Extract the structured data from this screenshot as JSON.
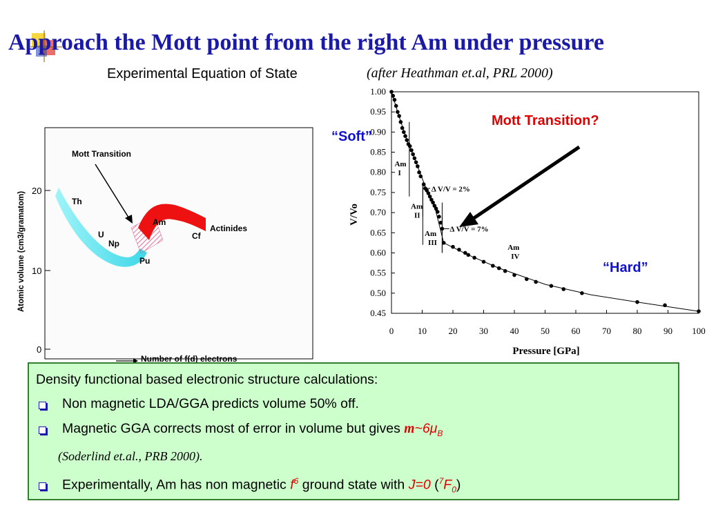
{
  "title": {
    "main": "Approach the Mott point from the right Am under pressure",
    "subtitle": "Experimental Equation of State",
    "citation": "(after Heathman et.al, PRL 2000)"
  },
  "left_figure": {
    "y_axis_label": "Atomic volume (cm3/gramatom)",
    "x_axis_label": "Number of f(d) electrons",
    "y_ticks": [
      "20",
      "10",
      "0"
    ],
    "annotation": "Mott Transition",
    "element_labels": [
      "Th",
      "U",
      "Np",
      "Pu",
      "Am",
      "Cf",
      "Actinides"
    ],
    "colors": {
      "cyan": "#66e8f0",
      "red": "#ee1111",
      "hatch": "#e05080"
    }
  },
  "callouts": {
    "mott_transition": "Mott Transition?",
    "soft": "“Soft”",
    "hard": "“Hard”"
  },
  "chart_data": {
    "type": "scatter",
    "xlabel": "Pressure [GPa]",
    "ylabel": "V/Vo",
    "xlim": [
      0,
      100
    ],
    "ylim": [
      0.45,
      1.0
    ],
    "x_ticks": [
      "0",
      "10",
      "20",
      "30",
      "40",
      "50",
      "60",
      "70",
      "80",
      "90",
      "100"
    ],
    "y_ticks": [
      "1.00",
      "0.95",
      "0.90",
      "0.85",
      "0.80",
      "0.75",
      "0.70",
      "0.65",
      "0.60",
      "0.55",
      "0.50",
      "0.45"
    ],
    "phase_labels": [
      {
        "name": "Am",
        "roman": "I"
      },
      {
        "name": "Am",
        "roman": "II"
      },
      {
        "name": "Am",
        "roman": "III"
      },
      {
        "name": "Am",
        "roman": "IV"
      }
    ],
    "delta_labels": [
      "Δ V/V = 2%",
      "Δ V/V = 7%"
    ],
    "points": [
      {
        "x": 0,
        "y": 1.0
      },
      {
        "x": 0.5,
        "y": 0.99
      },
      {
        "x": 1,
        "y": 0.98
      },
      {
        "x": 1.5,
        "y": 0.965
      },
      {
        "x": 2,
        "y": 0.95
      },
      {
        "x": 2.5,
        "y": 0.94
      },
      {
        "x": 3,
        "y": 0.925
      },
      {
        "x": 3.5,
        "y": 0.91
      },
      {
        "x": 4,
        "y": 0.9
      },
      {
        "x": 4.5,
        "y": 0.89
      },
      {
        "x": 5,
        "y": 0.88
      },
      {
        "x": 5.5,
        "y": 0.87
      },
      {
        "x": 6,
        "y": 0.865
      },
      {
        "x": 6.5,
        "y": 0.855
      },
      {
        "x": 7,
        "y": 0.845
      },
      {
        "x": 7.5,
        "y": 0.835
      },
      {
        "x": 8,
        "y": 0.825
      },
      {
        "x": 8.5,
        "y": 0.815
      },
      {
        "x": 9,
        "y": 0.8
      },
      {
        "x": 9.5,
        "y": 0.79
      },
      {
        "x": 10.5,
        "y": 0.77
      },
      {
        "x": 11,
        "y": 0.76
      },
      {
        "x": 11.5,
        "y": 0.755
      },
      {
        "x": 12,
        "y": 0.748
      },
      {
        "x": 12.5,
        "y": 0.74
      },
      {
        "x": 13,
        "y": 0.732
      },
      {
        "x": 13.5,
        "y": 0.725
      },
      {
        "x": 14,
        "y": 0.717
      },
      {
        "x": 14.5,
        "y": 0.71
      },
      {
        "x": 15,
        "y": 0.702
      },
      {
        "x": 15.5,
        "y": 0.69
      },
      {
        "x": 16,
        "y": 0.675
      },
      {
        "x": 16.5,
        "y": 0.66
      },
      {
        "x": 17,
        "y": 0.625
      },
      {
        "x": 20,
        "y": 0.615
      },
      {
        "x": 22,
        "y": 0.608
      },
      {
        "x": 24,
        "y": 0.6
      },
      {
        "x": 25,
        "y": 0.595
      },
      {
        "x": 27,
        "y": 0.588
      },
      {
        "x": 30,
        "y": 0.578
      },
      {
        "x": 33,
        "y": 0.568
      },
      {
        "x": 35,
        "y": 0.562
      },
      {
        "x": 37,
        "y": 0.555
      },
      {
        "x": 40,
        "y": 0.545
      },
      {
        "x": 44,
        "y": 0.535
      },
      {
        "x": 47,
        "y": 0.528
      },
      {
        "x": 52,
        "y": 0.518
      },
      {
        "x": 56,
        "y": 0.51
      },
      {
        "x": 62,
        "y": 0.5
      },
      {
        "x": 80,
        "y": 0.478
      },
      {
        "x": 89,
        "y": 0.47
      },
      {
        "x": 100,
        "y": 0.455
      }
    ],
    "fit_curve": [
      {
        "x": 0,
        "y": 1.0
      },
      {
        "x": 2,
        "y": 0.95
      },
      {
        "x": 5,
        "y": 0.88
      },
      {
        "x": 8,
        "y": 0.825
      },
      {
        "x": 11,
        "y": 0.765
      },
      {
        "x": 14,
        "y": 0.717
      },
      {
        "x": 17,
        "y": 0.625
      },
      {
        "x": 25,
        "y": 0.595
      },
      {
        "x": 35,
        "y": 0.562
      },
      {
        "x": 50,
        "y": 0.522
      },
      {
        "x": 65,
        "y": 0.496
      },
      {
        "x": 80,
        "y": 0.478
      },
      {
        "x": 100,
        "y": 0.455
      }
    ]
  },
  "info_box": {
    "heading": "Density functional based electronic structure calculations:",
    "bullet1": "Non magnetic LDA/GGA predicts volume 50% off.",
    "bullet2_text": "Magnetic GGA corrects most of error in volume but gives",
    "bullet2_m": "m",
    "bullet2_val": "~6μ",
    "bullet2_sub": "B",
    "note": "(Soderlind et.al., PRB 2000).",
    "bullet3_a": "Experimentally, Am has non magnetic",
    "bullet3_f": "f",
    "bullet3_fsup": "6",
    "bullet3_b": "ground state with",
    "bullet3_j": "J=0",
    "bullet3_open": "(",
    "bullet3_7": "7",
    "bullet3_F": "F",
    "bullet3_0": "0",
    "bullet3_close": ")"
  }
}
